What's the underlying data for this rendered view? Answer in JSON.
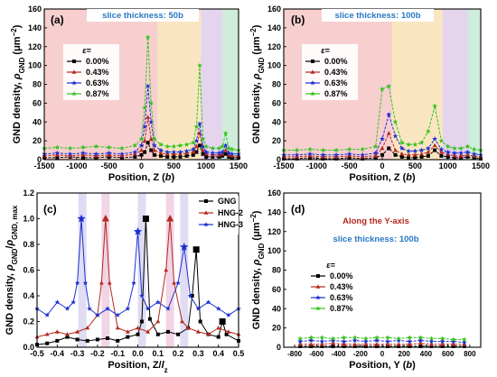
{
  "chart_data": [
    {
      "panel": "(a)",
      "type": "line",
      "annotation": "slice thickness: 50b",
      "xlabel": "Position, Z (b)",
      "ylabel": "GND density, ρGND (μm⁻²)",
      "xlim": [
        -1500,
        1500
      ],
      "ylim": [
        0,
        160
      ],
      "xticks": [
        -1500,
        -1000,
        -500,
        0,
        500,
        1000,
        1500
      ],
      "yticks": [
        0,
        20,
        40,
        60,
        80,
        100,
        120,
        140,
        160
      ],
      "bands": [
        {
          "from": -1500,
          "to": 250,
          "color": "#f6c7c7"
        },
        {
          "from": 250,
          "to": 920,
          "color": "#f8e2b6"
        },
        {
          "from": 920,
          "to": 1250,
          "color": "#dfcdea"
        },
        {
          "from": 1250,
          "to": 1500,
          "color": "#c7ead3"
        }
      ],
      "legend_title": "ε=",
      "legend_position": "left-middle",
      "series": [
        {
          "name": "0.00%",
          "color": "#000000",
          "marker": "square",
          "x": [
            -1500,
            -1300,
            -1100,
            -900,
            -700,
            -500,
            -300,
            -100,
            0,
            50,
            100,
            150,
            200,
            300,
            400,
            500,
            600,
            700,
            800,
            850,
            900,
            950,
            1000,
            1100,
            1200,
            1250,
            1300,
            1350,
            1400,
            1500
          ],
          "y": [
            2,
            2,
            3,
            2,
            2,
            3,
            2,
            3,
            5,
            8,
            18,
            10,
            5,
            4,
            3,
            3,
            3,
            4,
            5,
            8,
            15,
            6,
            3,
            3,
            3,
            4,
            6,
            3,
            2,
            2
          ]
        },
        {
          "name": "0.43%",
          "color": "#b5281f",
          "marker": "triangle",
          "x": [
            -1500,
            -1300,
            -1100,
            -900,
            -700,
            -500,
            -300,
            -100,
            0,
            50,
            100,
            150,
            200,
            300,
            400,
            500,
            600,
            700,
            800,
            850,
            900,
            950,
            1000,
            1100,
            1200,
            1250,
            1300,
            1350,
            1400,
            1500
          ],
          "y": [
            4,
            5,
            4,
            5,
            4,
            5,
            4,
            6,
            10,
            20,
            45,
            22,
            10,
            7,
            6,
            6,
            6,
            7,
            8,
            14,
            28,
            10,
            6,
            5,
            5,
            6,
            10,
            5,
            4,
            4
          ]
        },
        {
          "name": "0.63%",
          "color": "#1c2fd1",
          "marker": "star",
          "x": [
            -1500,
            -1300,
            -1100,
            -900,
            -700,
            -500,
            -300,
            -100,
            0,
            50,
            100,
            150,
            200,
            300,
            400,
            500,
            600,
            700,
            800,
            850,
            900,
            950,
            1000,
            1100,
            1200,
            1250,
            1300,
            1350,
            1400,
            1500
          ],
          "y": [
            6,
            7,
            6,
            7,
            6,
            7,
            6,
            8,
            15,
            35,
            78,
            40,
            15,
            10,
            8,
            8,
            8,
            9,
            11,
            20,
            38,
            14,
            8,
            7,
            7,
            8,
            15,
            7,
            6,
            6
          ]
        },
        {
          "name": "0.87%",
          "color": "#35c21f",
          "marker": "star",
          "x": [
            -1500,
            -1300,
            -1100,
            -900,
            -700,
            -500,
            -300,
            -100,
            0,
            50,
            100,
            150,
            200,
            300,
            400,
            500,
            600,
            700,
            800,
            850,
            900,
            950,
            1000,
            1100,
            1200,
            1250,
            1300,
            1350,
            1400,
            1500
          ],
          "y": [
            12,
            13,
            12,
            13,
            14,
            13,
            12,
            15,
            22,
            55,
            130,
            60,
            22,
            16,
            14,
            14,
            15,
            16,
            18,
            35,
            100,
            22,
            14,
            12,
            12,
            14,
            28,
            12,
            11,
            10
          ]
        }
      ]
    },
    {
      "panel": "(b)",
      "type": "line",
      "annotation": "slice thickness: 100b",
      "xlabel": "Position, Z (b)",
      "ylabel": "GND density, ρGND (μm⁻²)",
      "xlim": [
        -1500,
        1500
      ],
      "ylim": [
        0,
        160
      ],
      "xticks": [
        -1500,
        -1000,
        -500,
        0,
        500,
        1000,
        1500
      ],
      "yticks": [
        0,
        20,
        40,
        60,
        80,
        100,
        120,
        140,
        160
      ],
      "bands": [
        {
          "from": -1500,
          "to": 150,
          "color": "#f6c7c7"
        },
        {
          "from": 150,
          "to": 920,
          "color": "#f8e2b6"
        },
        {
          "from": 920,
          "to": 1300,
          "color": "#dfcdea"
        },
        {
          "from": 1300,
          "to": 1500,
          "color": "#c7ead3"
        }
      ],
      "legend_title": "ε=",
      "legend_position": "left-middle",
      "series": [
        {
          "name": "0.00%",
          "color": "#000000",
          "marker": "square",
          "x": [
            -1500,
            -1300,
            -1100,
            -900,
            -700,
            -500,
            -300,
            -100,
            0,
            100,
            200,
            300,
            400,
            500,
            600,
            700,
            800,
            900,
            1000,
            1100,
            1200,
            1300,
            1400,
            1500
          ],
          "y": [
            1,
            1,
            2,
            1,
            1,
            2,
            1,
            2,
            5,
            12,
            5,
            3,
            2,
            2,
            3,
            4,
            10,
            4,
            3,
            2,
            2,
            3,
            2,
            1
          ]
        },
        {
          "name": "0.43%",
          "color": "#b5281f",
          "marker": "triangle",
          "x": [
            -1500,
            -1300,
            -1100,
            -900,
            -700,
            -500,
            -300,
            -100,
            0,
            100,
            200,
            300,
            400,
            500,
            600,
            700,
            800,
            900,
            1000,
            1100,
            1200,
            1300,
            1400,
            1500
          ],
          "y": [
            3,
            3,
            4,
            3,
            3,
            4,
            3,
            4,
            12,
            28,
            10,
            6,
            5,
            5,
            6,
            8,
            15,
            8,
            6,
            4,
            4,
            5,
            4,
            3
          ]
        },
        {
          "name": "0.63%",
          "color": "#1c2fd1",
          "marker": "star",
          "x": [
            -1500,
            -1300,
            -1100,
            -900,
            -700,
            -500,
            -300,
            -100,
            0,
            100,
            200,
            300,
            400,
            500,
            600,
            700,
            800,
            900,
            1000,
            1100,
            1200,
            1300,
            1400,
            1500
          ],
          "y": [
            5,
            5,
            6,
            5,
            5,
            6,
            5,
            7,
            22,
            48,
            25,
            12,
            9,
            9,
            10,
            12,
            22,
            11,
            8,
            7,
            7,
            8,
            6,
            5
          ]
        },
        {
          "name": "0.87%",
          "color": "#35c21f",
          "marker": "star",
          "x": [
            -1500,
            -1300,
            -1100,
            -900,
            -700,
            -500,
            -300,
            -100,
            0,
            100,
            200,
            300,
            400,
            500,
            600,
            700,
            800,
            900,
            1000,
            1100,
            1200,
            1300,
            1400,
            1500
          ],
          "y": [
            10,
            10,
            11,
            10,
            10,
            11,
            11,
            14,
            75,
            78,
            40,
            18,
            16,
            16,
            18,
            30,
            57,
            20,
            14,
            12,
            12,
            14,
            11,
            10
          ]
        }
      ]
    },
    {
      "panel": "(c)",
      "type": "line",
      "xlabel": "Position, Z/lz",
      "ylabel": "GND density, ρGND/ρGND, max",
      "xlim": [
        -0.5,
        0.5
      ],
      "ylim": [
        0,
        1.2
      ],
      "xticks": [
        -0.5,
        -0.4,
        -0.3,
        -0.2,
        -0.1,
        0.0,
        0.1,
        0.2,
        0.3,
        0.4,
        0.5
      ],
      "yticks": [
        0.0,
        0.2,
        0.4,
        0.6,
        0.8,
        1.0,
        1.2
      ],
      "bands": [
        {
          "from": -0.295,
          "to": -0.255,
          "color": "#d9d6f2"
        },
        {
          "from": -0.18,
          "to": -0.14,
          "color": "#f0cde3"
        },
        {
          "from": 0.0,
          "to": 0.04,
          "color": "#d9d6f2"
        },
        {
          "from": 0.14,
          "to": 0.18,
          "color": "#f0cde3"
        },
        {
          "from": 0.21,
          "to": 0.25,
          "color": "#d9d6f2"
        }
      ],
      "legend_position": "top-right",
      "series": [
        {
          "name": "GNG",
          "color": "#000000",
          "marker": "square",
          "x": [
            -0.5,
            -0.45,
            -0.4,
            -0.35,
            -0.3,
            -0.25,
            -0.2,
            -0.15,
            -0.1,
            -0.05,
            0.0,
            0.02,
            0.04,
            0.06,
            0.1,
            0.15,
            0.2,
            0.25,
            0.27,
            0.29,
            0.31,
            0.35,
            0.4,
            0.42,
            0.44,
            0.5
          ],
          "y": [
            0.02,
            0.03,
            0.05,
            0.08,
            0.06,
            0.05,
            0.06,
            0.07,
            0.05,
            0.08,
            0.1,
            0.2,
            1.0,
            0.22,
            0.1,
            0.12,
            0.1,
            0.15,
            0.4,
            0.76,
            0.2,
            0.1,
            0.08,
            0.2,
            0.1,
            0.05
          ]
        },
        {
          "name": "HNG-2",
          "color": "#b5281f",
          "marker": "triangle",
          "x": [
            -0.5,
            -0.45,
            -0.4,
            -0.35,
            -0.3,
            -0.25,
            -0.2,
            -0.18,
            -0.16,
            -0.14,
            -0.1,
            -0.05,
            0.0,
            0.05,
            0.1,
            0.14,
            0.16,
            0.18,
            0.22,
            0.25,
            0.3,
            0.35,
            0.4,
            0.45,
            0.5
          ],
          "y": [
            0.08,
            0.1,
            0.12,
            0.1,
            0.12,
            0.15,
            0.25,
            0.5,
            1.0,
            0.5,
            0.15,
            0.12,
            0.15,
            0.12,
            0.2,
            0.6,
            1.0,
            0.5,
            0.2,
            0.15,
            0.12,
            0.1,
            0.15,
            0.12,
            0.1
          ]
        },
        {
          "name": "HNG-3",
          "color": "#1c2fd1",
          "marker": "star",
          "x": [
            -0.5,
            -0.45,
            -0.4,
            -0.35,
            -0.32,
            -0.3,
            -0.28,
            -0.26,
            -0.24,
            -0.2,
            -0.15,
            -0.1,
            -0.05,
            -0.02,
            0.0,
            0.02,
            0.05,
            0.1,
            0.15,
            0.2,
            0.23,
            0.26,
            0.3,
            0.35,
            0.4,
            0.45,
            0.5
          ],
          "y": [
            0.3,
            0.25,
            0.35,
            0.3,
            0.35,
            0.5,
            1.0,
            0.5,
            0.3,
            0.25,
            0.3,
            0.25,
            0.3,
            0.5,
            0.9,
            0.4,
            0.3,
            0.35,
            0.3,
            0.5,
            0.78,
            0.4,
            0.3,
            0.35,
            0.3,
            0.25,
            0.3
          ]
        }
      ]
    },
    {
      "panel": "(d)",
      "type": "line",
      "annotation_title": "Along the Y-axis",
      "annotation": "slice thickness: 100b",
      "xlabel": "Position, Y (b)",
      "ylabel": "GND density, ρGND (μm⁻²)",
      "xlim": [
        -900,
        900
      ],
      "ylim": [
        0,
        160
      ],
      "xticks": [
        -800,
        -600,
        -400,
        -200,
        0,
        200,
        400,
        600,
        800
      ],
      "yticks": [
        0,
        20,
        40,
        60,
        80,
        100,
        120,
        140,
        160
      ],
      "legend_title": "ε=",
      "legend_position": "left-middle",
      "series": [
        {
          "name": "0.00%",
          "color": "#000000",
          "marker": "square",
          "x": [
            -750,
            -650,
            -550,
            -450,
            -350,
            -250,
            -150,
            -50,
            50,
            150,
            250,
            350,
            450,
            550,
            650,
            750
          ],
          "y": [
            1,
            1,
            1,
            1,
            1,
            1,
            1,
            1,
            1,
            1,
            1,
            1,
            1,
            1,
            1,
            1
          ]
        },
        {
          "name": "0.43%",
          "color": "#b5281f",
          "marker": "triangle",
          "x": [
            -750,
            -650,
            -550,
            -450,
            -350,
            -250,
            -150,
            -50,
            50,
            150,
            250,
            350,
            450,
            550,
            650,
            750
          ],
          "y": [
            3,
            3,
            3,
            4,
            3,
            3,
            3,
            3,
            3,
            3,
            3,
            4,
            3,
            3,
            3,
            3
          ]
        },
        {
          "name": "0.63%",
          "color": "#1c2fd1",
          "marker": "star",
          "x": [
            -750,
            -650,
            -550,
            -450,
            -350,
            -250,
            -150,
            -50,
            50,
            150,
            250,
            350,
            450,
            550,
            650,
            750
          ],
          "y": [
            6,
            7,
            6,
            7,
            6,
            7,
            6,
            7,
            6,
            7,
            6,
            7,
            6,
            6,
            6,
            5
          ]
        },
        {
          "name": "0.87%",
          "color": "#35c21f",
          "marker": "star",
          "x": [
            -750,
            -650,
            -550,
            -450,
            -350,
            -250,
            -150,
            -50,
            50,
            150,
            250,
            350,
            450,
            550,
            650,
            750
          ],
          "y": [
            9,
            10,
            10,
            9,
            10,
            10,
            9,
            10,
            10,
            9,
            10,
            10,
            9,
            9,
            8,
            8
          ]
        }
      ]
    }
  ]
}
